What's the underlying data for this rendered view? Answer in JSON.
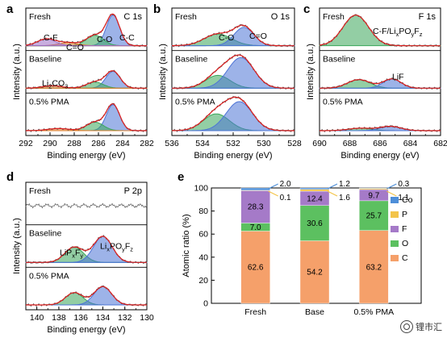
{
  "figure": {
    "watermark": "锂市汇",
    "xps_ylabel": "Intensity (a.u.)",
    "xps_xlabel": "Binding energy (eV)"
  },
  "chart_data": [
    {
      "panel": "a",
      "type": "line",
      "title": "C 1s",
      "xlabel": "Binding energy (eV)",
      "ylabel": "Intensity (a.u.)",
      "xlim": [
        292,
        282
      ],
      "xticks": [
        292,
        290,
        288,
        286,
        284,
        282
      ],
      "inverted_x": true,
      "rows": [
        {
          "label": "Fresh",
          "annotations": [
            "C-F",
            "C=O",
            "C-O",
            "C-C"
          ],
          "peaks": [
            {
              "name": "C-C",
              "center": 284.8,
              "height": 1.0,
              "width": 0.55,
              "color": "#4d74d6"
            },
            {
              "name": "C-O",
              "center": 286.3,
              "height": 0.34,
              "width": 0.7,
              "color": "#3aa65a"
            },
            {
              "name": "C=O",
              "center": 288.5,
              "height": 0.1,
              "width": 0.8,
              "color": "#e08030"
            },
            {
              "name": "C-F",
              "center": 290.3,
              "height": 0.22,
              "width": 0.75,
              "color": "#9b6cc4"
            }
          ]
        },
        {
          "label": "Baseline",
          "annotations": [
            "Li2CO3"
          ],
          "peaks": [
            {
              "name": "C-C",
              "center": 284.8,
              "height": 0.55,
              "width": 0.6,
              "color": "#4d74d6"
            },
            {
              "name": "C-O",
              "center": 286.3,
              "height": 0.2,
              "width": 0.7,
              "color": "#3aa65a"
            },
            {
              "name": "Li2CO3",
              "center": 289.8,
              "height": 0.08,
              "width": 0.8,
              "color": "#e08030"
            }
          ]
        },
        {
          "label": "0.5% PMA",
          "annotations": [],
          "peaks": [
            {
              "name": "C-C",
              "center": 284.8,
              "height": 0.85,
              "width": 0.55,
              "color": "#4d74d6"
            },
            {
              "name": "C-O",
              "center": 286.3,
              "height": 0.28,
              "width": 0.7,
              "color": "#3aa65a"
            },
            {
              "name": "C=O",
              "center": 289.3,
              "height": 0.07,
              "width": 0.9,
              "color": "#e08030"
            }
          ]
        }
      ]
    },
    {
      "panel": "b",
      "type": "line",
      "title": "O 1s",
      "xlabel": "Binding energy (eV)",
      "ylabel": "Intensity (a.u.)",
      "xlim": [
        536,
        528
      ],
      "xticks": [
        536,
        534,
        532,
        530,
        528
      ],
      "inverted_x": true,
      "rows": [
        {
          "label": "Fresh",
          "annotations": [
            "C-O",
            "C=O"
          ],
          "peaks": [
            {
              "name": "C-O",
              "center": 533.0,
              "height": 0.38,
              "width": 0.9,
              "color": "#3aa65a"
            },
            {
              "name": "C=O",
              "center": 531.3,
              "height": 0.6,
              "width": 0.65,
              "color": "#4d74d6"
            }
          ]
        },
        {
          "label": "Baseline",
          "annotations": [],
          "peaks": [
            {
              "name": "C-O",
              "center": 533.0,
              "height": 0.42,
              "width": 0.8,
              "color": "#3aa65a"
            },
            {
              "name": "C=O",
              "center": 531.5,
              "height": 1.0,
              "width": 0.85,
              "color": "#4d74d6"
            }
          ]
        },
        {
          "label": "0.5% PMA",
          "annotations": [],
          "peaks": [
            {
              "name": "C-O",
              "center": 533.1,
              "height": 0.55,
              "width": 0.85,
              "color": "#3aa65a"
            },
            {
              "name": "C=O",
              "center": 531.6,
              "height": 0.95,
              "width": 0.85,
              "color": "#4d74d6"
            }
          ]
        }
      ]
    },
    {
      "panel": "c",
      "type": "line",
      "title": "F 1s",
      "xlabel": "Binding energy (eV)",
      "ylabel": "Intensity (a.u.)",
      "xlim": [
        690,
        682
      ],
      "xticks": [
        690,
        688,
        686,
        684,
        682
      ],
      "inverted_x": true,
      "rows": [
        {
          "label": "Fresh",
          "annotations": [
            "C-F/LixPOyFz"
          ],
          "peaks": [
            {
              "name": "C-F/LixPOyFz",
              "center": 687.6,
              "height": 1.0,
              "width": 0.85,
              "color": "#3aa65a"
            }
          ]
        },
        {
          "label": "Baseline",
          "annotations": [
            "LiF"
          ],
          "peaks": [
            {
              "name": "C-F/LixPOyFz",
              "center": 687.4,
              "height": 0.28,
              "width": 0.75,
              "color": "#3aa65a"
            },
            {
              "name": "LiF",
              "center": 685.2,
              "height": 0.3,
              "width": 0.6,
              "color": "#4d74d6"
            }
          ]
        },
        {
          "label": "0.5% PMA",
          "annotations": [],
          "peaks": [
            {
              "name": "C-F/LixPOyFz",
              "center": 687.3,
              "height": 0.08,
              "width": 0.8,
              "color": "#3aa65a"
            },
            {
              "name": "LiF",
              "center": 685.3,
              "height": 0.14,
              "width": 0.7,
              "color": "#4d74d6"
            }
          ]
        }
      ]
    },
    {
      "panel": "d",
      "type": "line",
      "title": "P 2p",
      "xlabel": "Binding energy (eV)",
      "ylabel": "Intensity (a.u.)",
      "xlim": [
        141,
        130
      ],
      "xticks": [
        140,
        138,
        136,
        134,
        132,
        130
      ],
      "inverted_x": true,
      "rows": [
        {
          "label": "Fresh",
          "annotations": [],
          "peaks": []
        },
        {
          "label": "Baseline",
          "annotations": [
            "LiPxFy",
            "LixPOyFz"
          ],
          "peaks": [
            {
              "name": "LiPxFy",
              "center": 136.6,
              "height": 0.5,
              "width": 0.85,
              "color": "#3aa65a"
            },
            {
              "name": "LixPOyFz",
              "center": 134.0,
              "height": 0.85,
              "width": 0.85,
              "color": "#4d74d6"
            }
          ]
        },
        {
          "label": "0.5% PMA",
          "annotations": [],
          "peaks": [
            {
              "name": "LiPxFy",
              "center": 136.6,
              "height": 0.4,
              "width": 0.8,
              "color": "#3aa65a"
            },
            {
              "name": "LixPOyFz",
              "center": 134.0,
              "height": 0.6,
              "width": 0.8,
              "color": "#4d74d6"
            }
          ]
        }
      ]
    },
    {
      "panel": "e",
      "type": "bar",
      "stacked": true,
      "ylabel": "Atomic ratio (%)",
      "ylim": [
        0,
        100
      ],
      "yticks": [
        0,
        20,
        40,
        60,
        80,
        100
      ],
      "categories": [
        "Fresh",
        "Base",
        "0.5% PMA"
      ],
      "legend_position": "right",
      "series": [
        {
          "name": "C",
          "color": "#f5a06a",
          "values": [
            62.6,
            54.2,
            63.2
          ]
        },
        {
          "name": "O",
          "color": "#5cc060",
          "values": [
            7.0,
            30.6,
            25.7
          ]
        },
        {
          "name": "F",
          "color": "#a57ac8",
          "values": [
            28.3,
            12.4,
            9.7
          ]
        },
        {
          "name": "P",
          "color": "#f3c44a",
          "values": [
            0.1,
            1.6,
            1.1
          ]
        },
        {
          "name": "Co",
          "color": "#4e8fd8",
          "values": [
            2.0,
            1.2,
            0.3
          ]
        }
      ],
      "legend_order": [
        "Co",
        "P",
        "F",
        "O",
        "C"
      ]
    }
  ]
}
